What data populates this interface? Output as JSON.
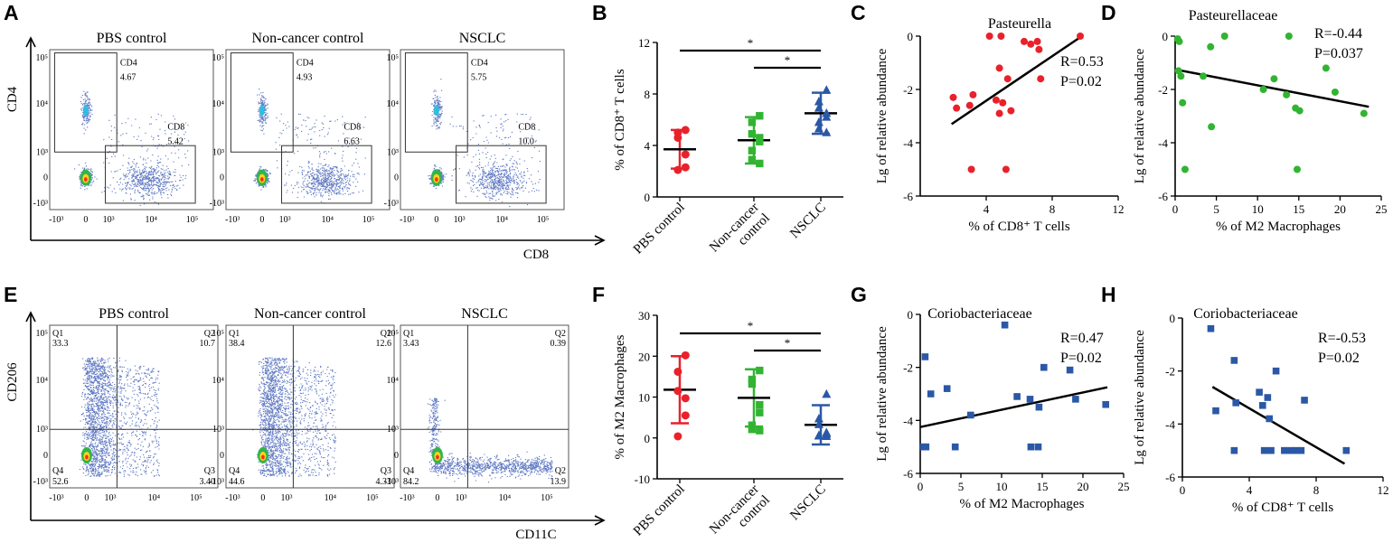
{
  "panel_letters": [
    "A",
    "B",
    "C",
    "D",
    "E",
    "F",
    "G",
    "H"
  ],
  "colors": {
    "pbs": "#e8212b",
    "noncancer": "#32b432",
    "nsclc": "#2b58a6",
    "scatter_red": "#e8212b",
    "scatter_green": "#32b432",
    "scatter_blue": "#2b58a6",
    "black": "#000000"
  },
  "flow_A": {
    "groups": [
      "PBS control",
      "Non-cancer control",
      "NSCLC"
    ],
    "x_label": "CD8",
    "y_label": "CD4",
    "x_ticks": [
      "-10³",
      "0",
      "10³",
      "10⁴",
      "10⁵"
    ],
    "y_ticks": [
      "10⁵",
      "10⁴",
      "10³",
      "0",
      "-10³"
    ],
    "gates": [
      {
        "cd4_label": "CD4",
        "cd4_value": "4.67",
        "cd8_label": "CD8",
        "cd8_value": "5.42"
      },
      {
        "cd4_label": "CD4",
        "cd4_value": "4.93",
        "cd8_label": "CD8",
        "cd8_value": "6.63"
      },
      {
        "cd4_label": "CD4",
        "cd4_value": "5.75",
        "cd8_label": "CD8",
        "cd8_value": "10.0"
      }
    ]
  },
  "flow_E": {
    "groups": [
      "PBS control",
      "Non-cancer control",
      "NSCLC"
    ],
    "x_label": "CD11C",
    "y_label": "CD206",
    "x_ticks": [
      "-10³",
      "0",
      "10³",
      "10⁴",
      "10⁵"
    ],
    "y_ticks": [
      "10⁵",
      "10⁴",
      "10³",
      "0",
      "-10³"
    ],
    "quadrants": [
      {
        "q1": "Q1",
        "q1v": "33.3",
        "q2": "Q2",
        "q2v": "10.7",
        "q3": "Q3",
        "q3v": "3.40",
        "q4": "Q4",
        "q4v": "52.6"
      },
      {
        "q1": "Q1",
        "q1v": "38.4",
        "q2": "Q2",
        "q2v": "12.6",
        "q3": "Q3",
        "q3v": "4.33",
        "q4": "Q4",
        "q4v": "44.6"
      },
      {
        "q1": "Q1",
        "q1v": "3.43",
        "q2": "Q2",
        "q2v": "0.39",
        "q3": "Q2",
        "q3v": "13.9",
        "q4": "Q4",
        "q4v": "84.2"
      }
    ]
  },
  "chart_data": [
    {
      "panel": "B",
      "type": "scatter",
      "categories": [
        "PBS control",
        "Non-cancer\ncontrol",
        "NSCLC"
      ],
      "ylabel": "% of CD8⁺ T cells",
      "ylim": [
        0,
        12
      ],
      "y_ticks": [
        0,
        4,
        8,
        12
      ],
      "series": [
        {
          "name": "PBS control",
          "marker": "circle",
          "mean": 3.7,
          "sd": 1.5,
          "values": [
            5.2,
            5.0,
            4.6,
            3.3,
            2.3,
            2.1
          ]
        },
        {
          "name": "Non-cancer control",
          "marker": "square",
          "mean": 4.4,
          "sd": 1.8,
          "values": [
            6.3,
            5.8,
            4.9,
            4.6,
            4.3,
            3.6,
            2.9,
            2.6
          ]
        },
        {
          "name": "NSCLC",
          "marker": "triangle",
          "mean": 6.5,
          "sd": 1.6,
          "values": [
            8.3,
            7.4,
            6.9,
            6.5,
            6.2,
            5.8,
            5.3,
            5.0
          ]
        }
      ],
      "significance": [
        {
          "from": 0,
          "to": 2,
          "label": "*"
        },
        {
          "from": 1,
          "to": 2,
          "label": "*"
        }
      ]
    },
    {
      "panel": "C",
      "type": "scatter",
      "title": "Pasteurella",
      "xlabel": "% of CD8⁺ T cells",
      "ylabel": "Lg of relative abundance",
      "xlim": [
        0,
        12
      ],
      "ylim": [
        -6,
        0
      ],
      "x_ticks": [
        4,
        8,
        12
      ],
      "y_ticks": [
        0,
        -2,
        -4,
        -6
      ],
      "points": [
        [
          2,
          -2.3
        ],
        [
          2.2,
          -2.7
        ],
        [
          3,
          -2.6
        ],
        [
          3.2,
          -2.2
        ],
        [
          3.1,
          -5
        ],
        [
          4.2,
          0
        ],
        [
          4.9,
          0
        ],
        [
          4.8,
          -1.2
        ],
        [
          4.6,
          -2.4
        ],
        [
          4.8,
          -2.9
        ],
        [
          5,
          -2.5
        ],
        [
          5.3,
          -1.6
        ],
        [
          5.5,
          -2.8
        ],
        [
          5.2,
          -5
        ],
        [
          6.3,
          -0.2
        ],
        [
          6.7,
          -0.3
        ],
        [
          7.1,
          -0.2
        ],
        [
          7.2,
          -0.5
        ],
        [
          7.3,
          -1.6
        ],
        [
          9.7,
          0
        ]
      ],
      "fit": [
        [
          1.9,
          -3.3
        ],
        [
          9.8,
          0
        ]
      ],
      "annotation": {
        "r": "R=0.53",
        "p": "P=0.02"
      }
    },
    {
      "panel": "D",
      "type": "scatter",
      "title": "Pasteurellaceae",
      "xlabel": "% of M2 Macrophages",
      "ylabel": "Lg of relative abundance",
      "xlim": [
        0,
        25
      ],
      "ylim": [
        -6,
        0
      ],
      "x_ticks": [
        0,
        5,
        10,
        15,
        20,
        25
      ],
      "y_ticks": [
        0,
        -2,
        -4,
        -6
      ],
      "points": [
        [
          0.3,
          -0.1
        ],
        [
          0.5,
          -0.2
        ],
        [
          0.4,
          -1.3
        ],
        [
          0.7,
          -1.5
        ],
        [
          0.9,
          -2.5
        ],
        [
          1.2,
          -5
        ],
        [
          3.4,
          -1.5
        ],
        [
          4.3,
          -0.4
        ],
        [
          4.4,
          -3.4
        ],
        [
          6,
          0
        ],
        [
          10.7,
          -2
        ],
        [
          12,
          -1.6
        ],
        [
          13.5,
          -2.2
        ],
        [
          13.8,
          0
        ],
        [
          14.6,
          -2.7
        ],
        [
          15.1,
          -2.8
        ],
        [
          14.8,
          -5
        ],
        [
          18.3,
          -1.2
        ],
        [
          19.4,
          -2.1
        ],
        [
          22.9,
          -2.9
        ]
      ],
      "fit": [
        [
          0,
          -1.25
        ],
        [
          23.5,
          -2.65
        ]
      ],
      "annotation": {
        "r": "R=-0.44",
        "p": "P=0.037"
      }
    },
    {
      "panel": "F",
      "type": "scatter",
      "categories": [
        "PBS control",
        "Non-cancer\ncontrol",
        "NSCLC"
      ],
      "ylabel": "% of M2 Macrophages",
      "ylim": [
        -10,
        30
      ],
      "y_ticks": [
        -10,
        0,
        10,
        20,
        30
      ],
      "series": [
        {
          "name": "PBS control",
          "marker": "circle",
          "mean": 11.8,
          "sd": 8.2,
          "values": [
            20.2,
            16.2,
            11.5,
            9.7,
            5.5,
            0.4
          ]
        },
        {
          "name": "Non-cancer control",
          "marker": "square",
          "mean": 9.8,
          "sd": 7,
          "values": [
            16.5,
            14.3,
            13.2,
            8.1,
            6.2,
            3.1,
            2.1,
            1.8
          ]
        },
        {
          "name": "NSCLC",
          "marker": "triangle",
          "mean": 3.2,
          "sd": 4.8,
          "values": [
            10.7,
            4.7,
            3.3,
            1.3,
            0.9,
            0.6,
            0.5,
            0.4
          ]
        }
      ],
      "significance": [
        {
          "from": 0,
          "to": 2,
          "label": "*"
        },
        {
          "from": 1,
          "to": 2,
          "label": "*"
        }
      ]
    },
    {
      "panel": "G",
      "type": "scatter",
      "title": "Coriobacteriaceae",
      "xlabel": "% of M2 Macrophages",
      "ylabel": "Lg of relative abundance",
      "xlim": [
        0,
        25
      ],
      "ylim": [
        -6,
        0
      ],
      "x_ticks": [
        0,
        5,
        10,
        15,
        20,
        25
      ],
      "y_ticks": [
        0,
        -2,
        -4,
        -6
      ],
      "points": [
        [
          0.4,
          -5
        ],
        [
          0.7,
          -5
        ],
        [
          0.6,
          -1.6
        ],
        [
          1.3,
          -3
        ],
        [
          3.3,
          -2.8
        ],
        [
          4.3,
          -5
        ],
        [
          6.2,
          -3.8
        ],
        [
          10.4,
          -0.4
        ],
        [
          11.9,
          -3.1
        ],
        [
          13.5,
          -3.2
        ],
        [
          13.6,
          -5
        ],
        [
          14.5,
          -5
        ],
        [
          14.6,
          -3.5
        ],
        [
          15.2,
          -2
        ],
        [
          18.4,
          -2.1
        ],
        [
          19.1,
          -3.2
        ],
        [
          22.8,
          -3.4
        ]
      ],
      "fit": [
        [
          0,
          -4.25
        ],
        [
          23,
          -2.75
        ]
      ],
      "annotation": {
        "r": "R=0.47",
        "p": "P=0.02"
      }
    },
    {
      "panel": "H",
      "type": "scatter",
      "title": "Coriobacteriaceae",
      "xlabel": "% of CD8⁺ T cells",
      "ylabel": "Lg of relative abundance",
      "xlim": [
        0,
        12
      ],
      "ylim": [
        -6,
        0
      ],
      "x_ticks": [
        0,
        4,
        8,
        12
      ],
      "y_ticks": [
        0,
        -2,
        -4,
        -6
      ],
      "points": [
        [
          1.7,
          -0.4
        ],
        [
          2,
          -3.5
        ],
        [
          3.1,
          -1.6
        ],
        [
          3.2,
          -3.2
        ],
        [
          3.1,
          -5
        ],
        [
          4.6,
          -2.8
        ],
        [
          4.8,
          -3.3
        ],
        [
          4.9,
          -5
        ],
        [
          5.1,
          -3
        ],
        [
          5.2,
          -3.8
        ],
        [
          5.3,
          -5
        ],
        [
          5.6,
          -2
        ],
        [
          6.1,
          -5
        ],
        [
          6.5,
          -5
        ],
        [
          6.8,
          -5
        ],
        [
          7.1,
          -5
        ],
        [
          7.3,
          -3.1
        ],
        [
          9.8,
          -5
        ]
      ],
      "fit": [
        [
          1.8,
          -2.6
        ],
        [
          9.7,
          -5.5
        ]
      ],
      "annotation": {
        "r": "R=-0.53",
        "p": "P=0.02"
      }
    }
  ]
}
